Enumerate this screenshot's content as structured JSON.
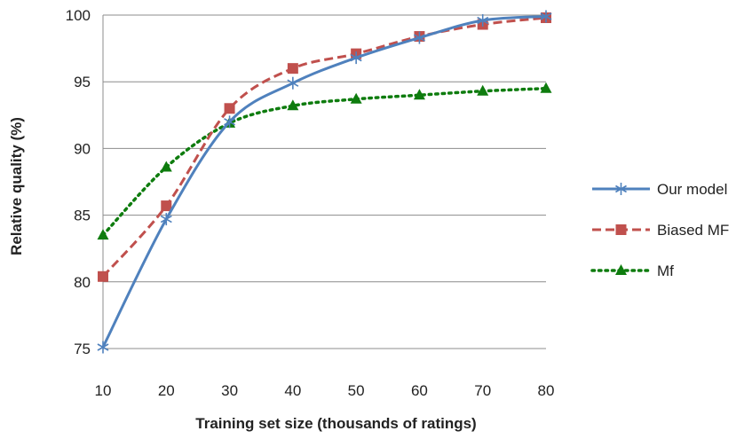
{
  "chart_data": {
    "type": "line",
    "title": "",
    "xlabel": "Training set size (thousands of ratings)",
    "ylabel": "Relative quality (%)",
    "x": [
      10,
      20,
      30,
      40,
      50,
      60,
      70,
      80
    ],
    "xlim": [
      10,
      80
    ],
    "ylim": [
      75,
      100
    ],
    "xticks": [
      "10",
      "20",
      "30",
      "40",
      "50",
      "60",
      "70",
      "80"
    ],
    "yticks": [
      "75",
      "80",
      "85",
      "90",
      "95",
      "100"
    ],
    "grid": "horizontal",
    "legend_position": "right",
    "series": [
      {
        "name": "Our model",
        "values": [
          75.1,
          84.7,
          92.0,
          94.9,
          96.8,
          98.3,
          99.6,
          99.9
        ],
        "color": "#4F81BD",
        "line_style": "solid",
        "marker": "asterisk"
      },
      {
        "name": "Biased MF",
        "values": [
          80.4,
          85.7,
          93.0,
          96.0,
          97.1,
          98.4,
          99.3,
          99.8
        ],
        "color": "#C0504D",
        "line_style": "dashed",
        "marker": "square"
      },
      {
        "name": "Mf",
        "values": [
          83.5,
          88.6,
          91.9,
          93.2,
          93.7,
          94.0,
          94.3,
          94.5
        ],
        "color": "#0E7C0E",
        "line_style": "dotted",
        "marker": "triangle"
      }
    ]
  }
}
